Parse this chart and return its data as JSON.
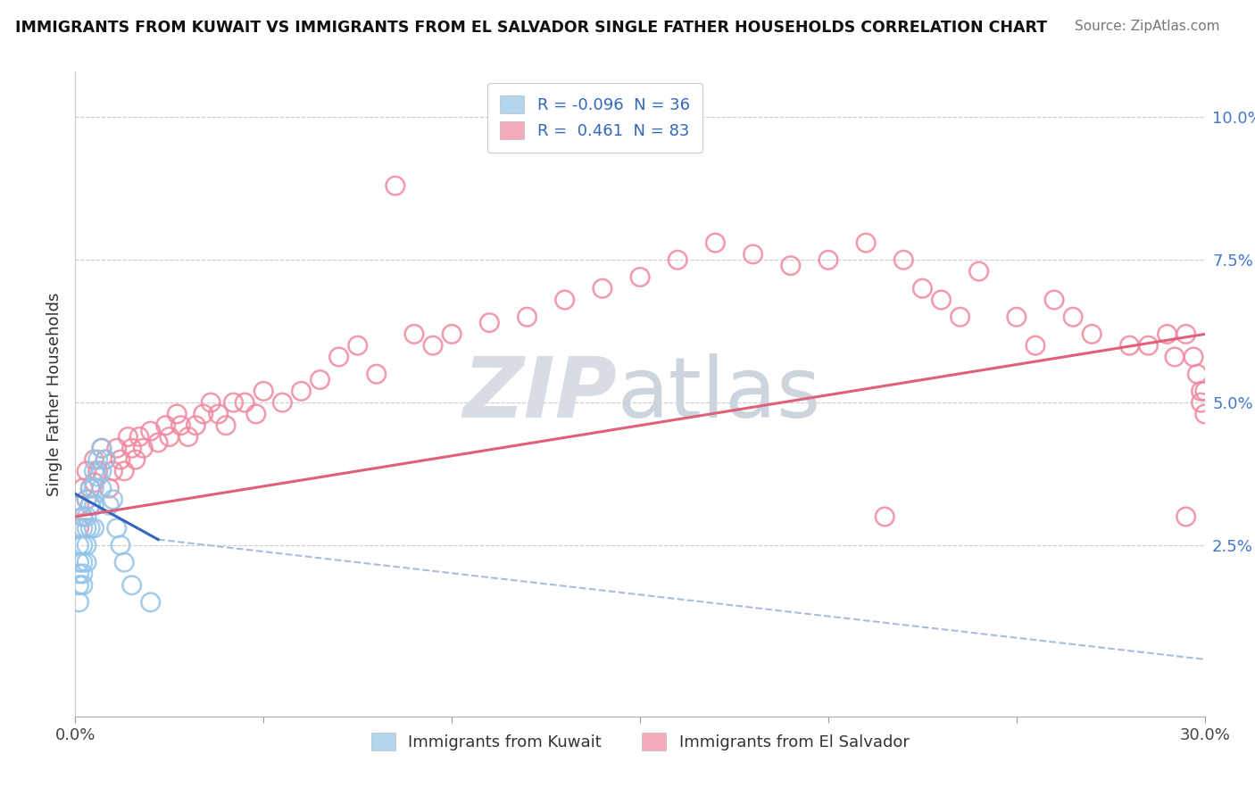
{
  "title": "IMMIGRANTS FROM KUWAIT VS IMMIGRANTS FROM EL SALVADOR SINGLE FATHER HOUSEHOLDS CORRELATION CHART",
  "source": "Source: ZipAtlas.com",
  "ylabel": "Single Father Households",
  "xlim": [
    0.0,
    0.3
  ],
  "ylim": [
    -0.005,
    0.108
  ],
  "color_kuwait": "#93c4e8",
  "color_salvador": "#f0899e",
  "color_trendline_kuwait": "#3366bb",
  "color_trendline_salvador": "#e0607a",
  "color_dashed": "#aabbdd",
  "background_color": "#ffffff",
  "ytick_color": "#4477cc",
  "R_kuwait": -0.096,
  "N_kuwait": 36,
  "R_salvador": 0.461,
  "N_salvador": 83,
  "kuwait_x": [
    0.001,
    0.001,
    0.001,
    0.001,
    0.001,
    0.002,
    0.002,
    0.002,
    0.002,
    0.002,
    0.002,
    0.003,
    0.003,
    0.003,
    0.003,
    0.003,
    0.004,
    0.004,
    0.004,
    0.005,
    0.005,
    0.005,
    0.005,
    0.006,
    0.006,
    0.007,
    0.007,
    0.007,
    0.008,
    0.009,
    0.01,
    0.011,
    0.012,
    0.013,
    0.015,
    0.02
  ],
  "kuwait_y": [
    0.025,
    0.022,
    0.02,
    0.018,
    0.015,
    0.03,
    0.028,
    0.025,
    0.022,
    0.02,
    0.018,
    0.033,
    0.03,
    0.028,
    0.025,
    0.022,
    0.035,
    0.032,
    0.028,
    0.038,
    0.035,
    0.032,
    0.028,
    0.04,
    0.037,
    0.042,
    0.038,
    0.035,
    0.04,
    0.032,
    0.033,
    0.028,
    0.025,
    0.022,
    0.018,
    0.015
  ],
  "salvador_x": [
    0.001,
    0.001,
    0.002,
    0.002,
    0.003,
    0.003,
    0.004,
    0.004,
    0.005,
    0.005,
    0.006,
    0.007,
    0.008,
    0.009,
    0.01,
    0.011,
    0.012,
    0.013,
    0.014,
    0.015,
    0.016,
    0.017,
    0.018,
    0.02,
    0.022,
    0.024,
    0.025,
    0.027,
    0.028,
    0.03,
    0.032,
    0.034,
    0.036,
    0.038,
    0.04,
    0.042,
    0.045,
    0.048,
    0.05,
    0.055,
    0.06,
    0.065,
    0.07,
    0.075,
    0.08,
    0.085,
    0.09,
    0.095,
    0.1,
    0.11,
    0.12,
    0.13,
    0.14,
    0.15,
    0.16,
    0.17,
    0.18,
    0.19,
    0.2,
    0.21,
    0.215,
    0.22,
    0.225,
    0.23,
    0.235,
    0.24,
    0.25,
    0.255,
    0.26,
    0.265,
    0.27,
    0.28,
    0.285,
    0.29,
    0.292,
    0.295,
    0.295,
    0.297,
    0.298,
    0.299,
    0.299,
    0.3,
    0.3
  ],
  "salvador_y": [
    0.032,
    0.028,
    0.035,
    0.03,
    0.033,
    0.038,
    0.032,
    0.035,
    0.04,
    0.036,
    0.038,
    0.042,
    0.04,
    0.035,
    0.038,
    0.042,
    0.04,
    0.038,
    0.044,
    0.042,
    0.04,
    0.044,
    0.042,
    0.045,
    0.043,
    0.046,
    0.044,
    0.048,
    0.046,
    0.044,
    0.046,
    0.048,
    0.05,
    0.048,
    0.046,
    0.05,
    0.05,
    0.048,
    0.052,
    0.05,
    0.052,
    0.054,
    0.058,
    0.06,
    0.055,
    0.088,
    0.062,
    0.06,
    0.062,
    0.064,
    0.065,
    0.068,
    0.07,
    0.072,
    0.075,
    0.078,
    0.076,
    0.074,
    0.075,
    0.078,
    0.03,
    0.075,
    0.07,
    0.068,
    0.065,
    0.073,
    0.065,
    0.06,
    0.068,
    0.065,
    0.062,
    0.06,
    0.06,
    0.062,
    0.058,
    0.03,
    0.062,
    0.058,
    0.055,
    0.052,
    0.05,
    0.048,
    0.052
  ],
  "trendline_kuwait_x0": 0.0,
  "trendline_kuwait_x1": 0.022,
  "trendline_kuwait_y0": 0.034,
  "trendline_kuwait_y1": 0.026,
  "trendline_dash_x0": 0.022,
  "trendline_dash_x1": 0.3,
  "trendline_dash_y0": 0.026,
  "trendline_dash_y1": 0.005,
  "trendline_salvador_x0": 0.0,
  "trendline_salvador_x1": 0.3,
  "trendline_salvador_y0": 0.03,
  "trendline_salvador_y1": 0.062
}
